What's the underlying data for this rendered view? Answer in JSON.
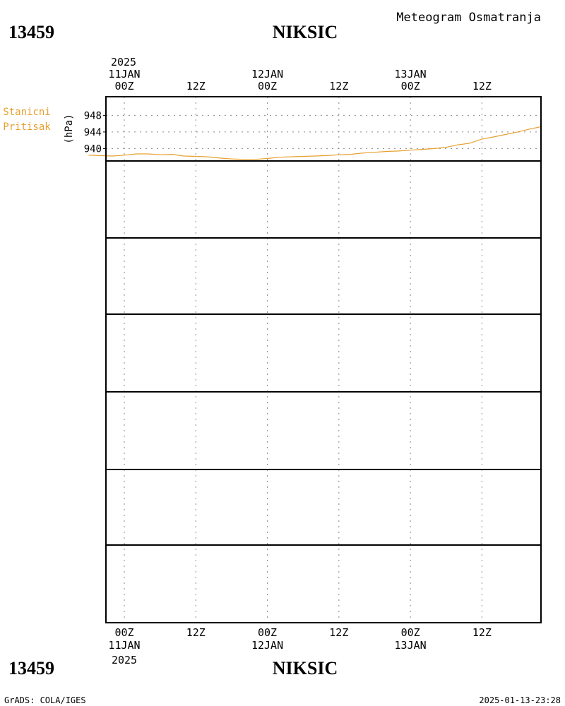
{
  "header": {
    "station_id": "13459",
    "station_name": "NIKSIC",
    "product": "Meteogram Osmatranja"
  },
  "top_axis": {
    "year": "2025",
    "month_day": "11JAN",
    "days": [
      "11JAN",
      "12JAN",
      "13JAN"
    ]
  },
  "time_ticks": [
    "00Z",
    "12Z",
    "00Z",
    "12Z",
    "00Z",
    "12Z"
  ],
  "bottom_axis": {
    "days": [
      "11JAN",
      "12JAN",
      "13JAN"
    ],
    "year": "2025"
  },
  "footer": {
    "station_id": "13459",
    "station_name": "NIKSIC",
    "credit": "GrADS: COLA/IGES",
    "timestamp": "2025-01-13-23:28"
  },
  "colors": {
    "pressure": "#e6a030",
    "reduced": "#10a0d0",
    "temp": "#c0006a",
    "tmax": "#ee0000",
    "tmin": "#20c020",
    "wind": "#9000c0",
    "direction_label": "#9010b0",
    "direction_bar": "#808080",
    "direction_base": "#c84040",
    "cloud_high": "#20b0c0",
    "cloud_mid": "#20c020",
    "cloud_low": "#e6a030",
    "precip": "#10a0e0",
    "grid": "#888888"
  },
  "chart_data": [
    {
      "type": "line",
      "id": "station_pressure",
      "labels": [
        "Stanicni",
        "Pritisak"
      ],
      "ylabel": "(hPa)",
      "yticks": [
        940,
        944,
        948
      ],
      "ylim": [
        937,
        952.5
      ],
      "x_unit": "hours since 11JAN 00Z",
      "series": [
        {
          "x": [
            -6,
            -4,
            -2,
            0,
            2,
            4,
            6,
            8,
            10,
            12,
            14,
            16,
            18,
            20,
            22,
            24,
            26,
            28,
            30,
            32,
            34,
            36,
            38,
            40,
            42,
            44,
            46,
            48,
            50,
            52,
            54,
            56,
            58,
            60,
            62,
            64,
            66,
            68,
            70
          ],
          "y": [
            938.4,
            938.3,
            938.2,
            938.4,
            938.7,
            938.7,
            938.5,
            938.6,
            938.2,
            938.1,
            938.0,
            937.7,
            937.5,
            937.4,
            937.4,
            937.6,
            937.9,
            938.0,
            938.1,
            938.2,
            938.3,
            938.5,
            938.6,
            938.9,
            939.1,
            939.3,
            939.4,
            939.6,
            939.8,
            940.0,
            940.3,
            940.9,
            941.3,
            942.3,
            942.8,
            943.4,
            944.0,
            944.7,
            945.3
          ],
          "note": "gap"
        }
      ]
    }
  ]
}
